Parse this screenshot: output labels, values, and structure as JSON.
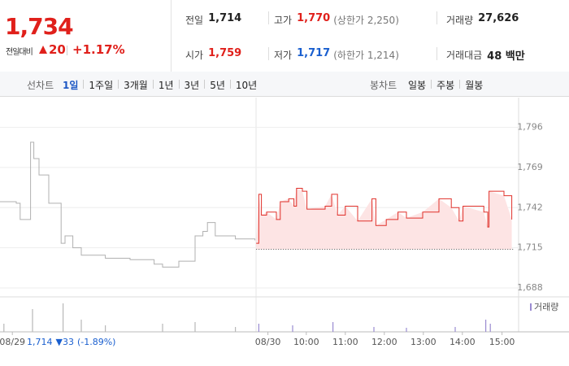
{
  "summary": {
    "price": "1,734",
    "change_label": "전일대비",
    "change": "20",
    "change_pct": "+1.17%",
    "color": "#e0201b"
  },
  "quote": [
    {
      "label": "전일",
      "value": "1,714",
      "color": "#222222"
    },
    {
      "label": "고가",
      "value": "1,770",
      "note": "(상한가 2,250)",
      "color": "#e0201b"
    },
    {
      "label": "거래량",
      "value": "27,626",
      "color": "#222222"
    },
    {
      "label": "시가",
      "value": "1,759",
      "color": "#e0201b"
    },
    {
      "label": "저가",
      "value": "1,717",
      "note": "(하한가 1,214)",
      "color": "#1a5fcf"
    },
    {
      "label": "거래대금",
      "value": "48 백만",
      "color": "#222222"
    }
  ],
  "tabs": {
    "line_label": "선차트",
    "line": [
      "1일",
      "1주일",
      "3개월",
      "1년",
      "3년",
      "5년",
      "10년"
    ],
    "selected": 0,
    "candle_label": "봉차트",
    "candle": [
      "일봉",
      "주봉",
      "월봉"
    ]
  },
  "chart_data": {
    "type": "line",
    "xlim": [
      0,
      790
    ],
    "ylim": [
      1682,
      1816
    ],
    "xticks": [
      {
        "value": 19,
        "label": "08/29"
      },
      {
        "value": 412,
        "label": "08/30"
      },
      {
        "value": 471,
        "label": "10:00"
      },
      {
        "value": 531,
        "label": "11:00"
      },
      {
        "value": 591,
        "label": "12:00"
      },
      {
        "value": 651,
        "label": "13:00"
      },
      {
        "value": 711,
        "label": "14:00"
      },
      {
        "value": 772,
        "label": "15:00"
      }
    ],
    "yticks": [
      {
        "value": 1796,
        "label": "1,796"
      },
      {
        "value": 1769,
        "label": "1,769"
      },
      {
        "value": 1742,
        "label": "1,742"
      },
      {
        "value": 1715,
        "label": "1,715"
      },
      {
        "value": 1688,
        "label": "1,688"
      }
    ],
    "grid": true,
    "baseline": 1714,
    "prev_summary": {
      "close": "1,714",
      "change": "▼33",
      "change_pct": "(-1.89%)"
    },
    "series": [
      {
        "color": "#b0b0b0",
        "x": [
          0,
          25,
          31,
          47,
          52,
          60,
          75,
          94,
          100,
          112,
          125,
          162,
          200,
          237,
          250,
          275,
          300,
          312,
          319,
          331,
          362,
          392
        ],
        "values": [
          1746,
          1745,
          1734,
          1786,
          1775,
          1764,
          1745,
          1718,
          1723,
          1715,
          1710,
          1708,
          1707,
          1704,
          1702,
          1706,
          1723,
          1726,
          1732,
          1723,
          1721,
          1720
        ]
      },
      {
        "color": "#e0302a",
        "fill": "#fde4e4",
        "x": [
          394,
          398,
          402,
          410,
          425,
          431,
          444,
          452,
          456,
          465,
          472,
          500,
          510,
          519,
          531,
          550,
          572,
          578,
          594,
          612,
          625,
          650,
          675,
          694,
          706,
          712,
          744,
          750,
          752,
          775,
          787
        ],
        "values": [
          1718,
          1751,
          1737,
          1739,
          1734,
          1746,
          1748,
          1743,
          1755,
          1753,
          1741,
          1743,
          1751,
          1737,
          1743,
          1733,
          1748,
          1730,
          1734,
          1739,
          1735,
          1739,
          1748,
          1742,
          1733,
          1743,
          1739,
          1729,
          1753,
          1750,
          1734
        ]
      }
    ],
    "volume": {
      "name": "거래량",
      "color": "#9a8bd1",
      "ylim": [
        0,
        40
      ],
      "series": [
        {
          "color": "#b8b8b8",
          "x": [
            6,
            50,
            97,
            125,
            162,
            250,
            300,
            362
          ],
          "values": [
            10,
            28,
            35,
            15,
            8,
            10,
            12,
            6
          ]
        },
        {
          "color": "#9a8bd1",
          "x": [
            398,
            450,
            512,
            575,
            625,
            700,
            747,
            754
          ],
          "values": [
            10,
            8,
            12,
            6,
            5,
            6,
            15,
            10
          ]
        }
      ]
    }
  }
}
